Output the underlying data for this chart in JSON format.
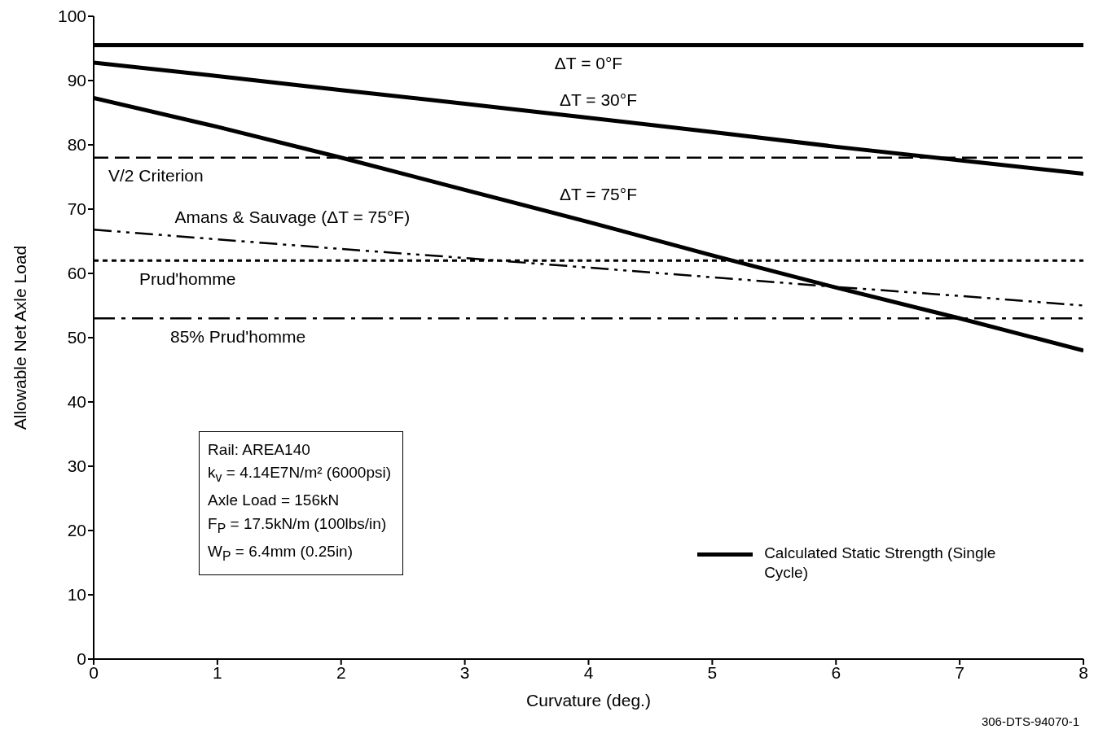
{
  "chart_data": {
    "type": "line",
    "xlabel": "Curvature (deg.)",
    "ylabel": "Allowable Net Axle Load",
    "x": [
      0,
      1,
      2,
      3,
      4,
      5,
      6,
      7,
      8
    ],
    "series": [
      {
        "name": "ΔT = 0°F",
        "color": "#000000",
        "line_style": "solid",
        "values": [
          95.5,
          95.5,
          95.5,
          95.5,
          95.5,
          95.5,
          95.5,
          95.5,
          95.5
        ]
      },
      {
        "name": "ΔT = 30°F",
        "color": "#000000",
        "line_style": "solid",
        "values": [
          92.8,
          90.7,
          88.5,
          86.4,
          84.2,
          82,
          79.7,
          77.6,
          75.5
        ]
      },
      {
        "name": "ΔT = 75°F",
        "color": "#000000",
        "line_style": "solid",
        "values": [
          87.3,
          82.8,
          78,
          73,
          68,
          62.8,
          57.8,
          53,
          48
        ]
      },
      {
        "name": "Amans & Sauvage  (ΔT = 75°F)",
        "color": "#000000",
        "line_style": "dashdotdot",
        "values": [
          66.8,
          65.3,
          63.8,
          62.4,
          60.9,
          59.4,
          57.9,
          56.5,
          55
        ]
      }
    ],
    "ref_lines": [
      {
        "axis": "y",
        "value": 78,
        "label": "V/2 Criterion",
        "line_style": "dashed",
        "color": "#000000"
      },
      {
        "axis": "y",
        "value": 62,
        "label": "Prud'homme",
        "line_style": "dotted",
        "color": "#000000"
      },
      {
        "axis": "y",
        "value": 53,
        "label": "85% Prud'homme",
        "line_style": "dashdot",
        "color": "#000000"
      }
    ],
    "xlim": [
      0,
      8
    ],
    "xticks": [
      0,
      1,
      2,
      3,
      4,
      5,
      6,
      7,
      8
    ],
    "ylim": [
      0,
      100
    ],
    "yticks": [
      0,
      10,
      20,
      30,
      40,
      50,
      60,
      70,
      80,
      90,
      100
    ],
    "grid": false,
    "marker": "none",
    "annotations": [
      "Rail: AREA140",
      "k$_{v}$ = 4.14E7N/m² (6000psi)",
      "Axle Load = 156kN",
      "F$_{P}$ = 17.5kN/m (100lbs/in)",
      "W$_{P}$ = 6.4mm (0.25in)",
      "Calculated Static Strength (Single Cycle)",
      "306-DTS-94070-1"
    ]
  }
}
